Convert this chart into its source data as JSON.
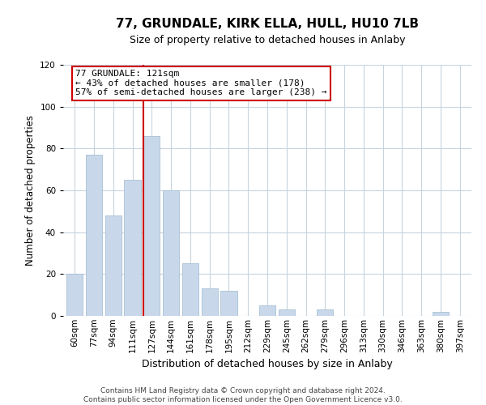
{
  "title": "77, GRUNDALE, KIRK ELLA, HULL, HU10 7LB",
  "subtitle": "Size of property relative to detached houses in Anlaby",
  "xlabel": "Distribution of detached houses by size in Anlaby",
  "ylabel": "Number of detached properties",
  "categories": [
    "60sqm",
    "77sqm",
    "94sqm",
    "111sqm",
    "127sqm",
    "144sqm",
    "161sqm",
    "178sqm",
    "195sqm",
    "212sqm",
    "229sqm",
    "245sqm",
    "262sqm",
    "279sqm",
    "296sqm",
    "313sqm",
    "330sqm",
    "346sqm",
    "363sqm",
    "380sqm",
    "397sqm"
  ],
  "values": [
    20,
    77,
    48,
    65,
    86,
    60,
    25,
    13,
    12,
    0,
    5,
    3,
    0,
    3,
    0,
    0,
    0,
    0,
    0,
    2,
    0
  ],
  "bar_color": "#c8d8ea",
  "bar_edge_color": "#a8c0d4",
  "vline_index": 4,
  "vline_color": "#cc0000",
  "annotation_line1": "77 GRUNDALE: 121sqm",
  "annotation_line2": "← 43% of detached houses are smaller (178)",
  "annotation_line3": "57% of semi-detached houses are larger (238) →",
  "annotation_box_edge": "#cc0000",
  "ylim": [
    0,
    120
  ],
  "yticks": [
    0,
    20,
    40,
    60,
    80,
    100,
    120
  ],
  "footer_line1": "Contains HM Land Registry data © Crown copyright and database right 2024.",
  "footer_line2": "Contains public sector information licensed under the Open Government Licence v3.0.",
  "background_color": "#ffffff",
  "grid_color": "#c8d4de",
  "title_fontsize": 11,
  "subtitle_fontsize": 9,
  "ylabel_fontsize": 8.5,
  "xlabel_fontsize": 9,
  "tick_fontsize": 7.5,
  "footer_fontsize": 6.5,
  "annotation_fontsize": 8
}
